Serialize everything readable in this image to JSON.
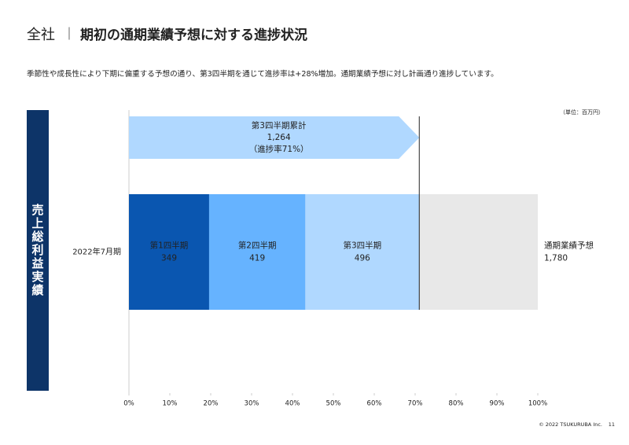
{
  "header": {
    "title_prefix": "全社",
    "separator": "｜",
    "title": "期初の通期業績予想に対する進捗状況",
    "subtitle": "季節性や成長性により下期に偏重する予想の通り、第3四半期を通じて進捗率は+28%増加。通期業績予想に対し計画通り進捗しています。"
  },
  "side_label": "売上総利益実績",
  "chart_data": {
    "type": "stacked_bar_h",
    "unit_note": "（単位：百万円）",
    "categories": [
      "2022年7月期"
    ],
    "series": [
      {
        "name": "第1四半期",
        "color": "#0a56b0",
        "values": [
          349
        ]
      },
      {
        "name": "第2四半期",
        "color": "#66b3ff",
        "values": [
          419
        ]
      },
      {
        "name": "第3四半期",
        "color": "#b0d8ff",
        "values": [
          496
        ]
      }
    ],
    "forecast": {
      "name": "通期業績予想",
      "color": "#e8e8e8",
      "values": [
        1780
      ],
      "value_labels": [
        "1,780"
      ]
    },
    "cumulative": {
      "name": "第3四半期累計",
      "value": 1264,
      "value_label": "1,264",
      "progress_label": "（進捗率71%）",
      "color": "#b0d8ff"
    },
    "xlim": [
      0,
      1780
    ],
    "xticks": [
      {
        "value": 0,
        "label": "0%"
      },
      {
        "value": 178,
        "label": "10%"
      },
      {
        "value": 356,
        "label": "20%"
      },
      {
        "value": 534,
        "label": "30%"
      },
      {
        "value": 712,
        "label": "40%"
      },
      {
        "value": 890,
        "label": "50%"
      },
      {
        "value": 1068,
        "label": "60%"
      },
      {
        "value": 1246,
        "label": "70%"
      },
      {
        "value": 1424,
        "label": "80%"
      },
      {
        "value": 1602,
        "label": "90%"
      },
      {
        "value": 1780,
        "label": "100%"
      }
    ]
  },
  "footer": {
    "copyright": "© 2022 TSUKURUBA Inc.",
    "page": "11"
  }
}
